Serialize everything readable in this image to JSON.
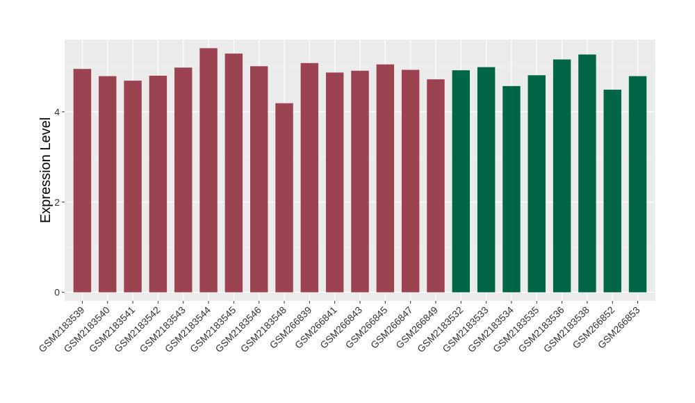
{
  "chart_data": {
    "type": "bar",
    "title": "",
    "xlabel": "",
    "ylabel": "Expression Level",
    "ylim": [
      -0.19,
      5.6
    ],
    "yticks": [
      0,
      2,
      4
    ],
    "grid": true,
    "legend": "none",
    "panel_background": "#ebebeb",
    "grid_color": "#ffffff",
    "categories": [
      "GSM2183539",
      "GSM2183540",
      "GSM2183541",
      "GSM2183542",
      "GSM2183543",
      "GSM2183544",
      "GSM2183545",
      "GSM2183546",
      "GSM2183548",
      "GSM266839",
      "GSM266841",
      "GSM266843",
      "GSM266845",
      "GSM266847",
      "GSM266849",
      "GSM2183532",
      "GSM2183533",
      "GSM2183534",
      "GSM2183535",
      "GSM2183536",
      "GSM2183538",
      "GSM266852",
      "GSM266853"
    ],
    "values": [
      4.95,
      4.79,
      4.69,
      4.8,
      4.98,
      5.41,
      5.29,
      5.01,
      4.19,
      5.08,
      4.87,
      4.91,
      5.05,
      4.93,
      4.72,
      4.92,
      4.99,
      4.57,
      4.81,
      5.16,
      5.27,
      4.49,
      4.79
    ],
    "groups": [
      "a",
      "a",
      "a",
      "a",
      "a",
      "a",
      "a",
      "a",
      "a",
      "a",
      "a",
      "a",
      "a",
      "a",
      "a",
      "b",
      "b",
      "b",
      "b",
      "b",
      "b",
      "b",
      "b"
    ],
    "group_colors": {
      "a": "#9b4350",
      "b": "#006647"
    }
  }
}
